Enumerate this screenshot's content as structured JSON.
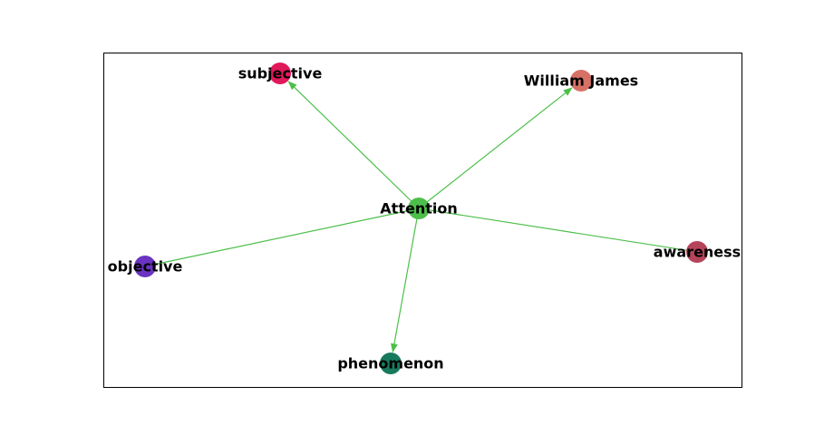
{
  "graph": {
    "center": {
      "id": "attention",
      "label": "Attention",
      "color": "#4cbf4a"
    },
    "edge_color": "#4cbf4a",
    "nodes": [
      {
        "id": "subjective",
        "label": "subjective",
        "color": "#e0195a"
      },
      {
        "id": "william-james",
        "label": "William James",
        "color": "#d77165"
      },
      {
        "id": "objective",
        "label": "objective",
        "color": "#6a33c2"
      },
      {
        "id": "awareness",
        "label": "awareness",
        "color": "#b5445a"
      },
      {
        "id": "phenomenon",
        "label": "phenomenon",
        "color": "#187a5c"
      }
    ],
    "edges": [
      {
        "from": "attention",
        "to": "subjective",
        "arrow": true
      },
      {
        "from": "attention",
        "to": "william-james",
        "arrow": true
      },
      {
        "from": "attention",
        "to": "objective",
        "arrow": false
      },
      {
        "from": "attention",
        "to": "awareness",
        "arrow": false
      },
      {
        "from": "attention",
        "to": "phenomenon",
        "arrow": true
      }
    ]
  }
}
